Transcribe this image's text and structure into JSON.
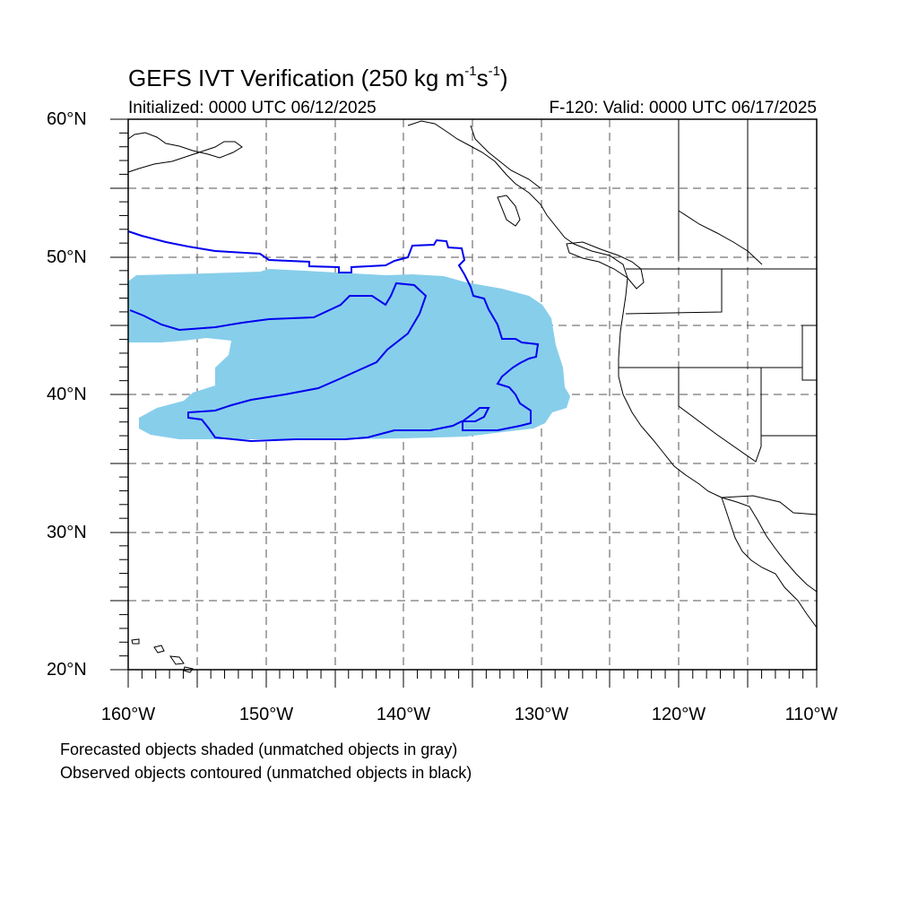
{
  "title": {
    "main": "GEFS IVT Verification (250 kg m",
    "sup1": "-1",
    "mid": "s",
    "sup2": "-1",
    "end": ")"
  },
  "subtitle": {
    "initialized": "Initialized: 0000 UTC 06/12/2025",
    "valid": "F-120: Valid: 0000 UTC 06/17/2025"
  },
  "axes": {
    "lat_labels": [
      "60°N",
      "50°N",
      "40°N",
      "30°N",
      "20°N"
    ],
    "lon_labels": [
      "160°W",
      "150°W",
      "140°W",
      "130°W",
      "120°W",
      "110°W"
    ]
  },
  "map": {
    "lon_range": [
      -160,
      -110
    ],
    "lat_range": [
      20,
      60
    ],
    "forecast_color": "#87ceeb",
    "observed_color": "#0000ee"
  },
  "notes": {
    "line1": "Forecasted objects shaded (unmatched objects in gray)",
    "line2": "Observed objects contoured (unmatched objects in black)"
  }
}
